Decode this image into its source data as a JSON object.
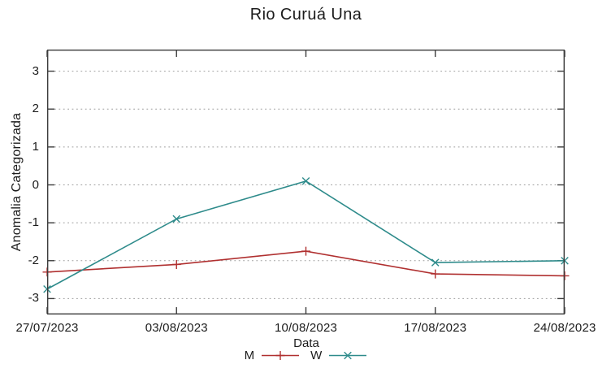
{
  "chart_data": {
    "type": "line",
    "title": "Rio Curuá Una",
    "xlabel": "Data",
    "ylabel": "Anomalia Categorizada",
    "categories": [
      "27/07/2023",
      "03/08/2023",
      "10/08/2023",
      "17/08/2023",
      "24/08/2023"
    ],
    "series": [
      {
        "name": "M",
        "color": "#b03030",
        "marker": "plus",
        "values": [
          -2.3,
          -2.1,
          -1.75,
          -2.35,
          -2.4
        ]
      },
      {
        "name": "W",
        "color": "#2e8b8b",
        "marker": "cross",
        "values": [
          -2.75,
          -0.9,
          0.1,
          -2.05,
          -2.0
        ]
      }
    ],
    "ylim": [
      -3.42,
      3.57
    ],
    "yticks": [
      3,
      2,
      1,
      0,
      -1,
      -2,
      -3
    ],
    "grid": "horizontal-dotted",
    "legend_position": "bottom-center",
    "axis_color": "#3c3c3c",
    "grid_color": "#9e9e9e",
    "text_color": "#1c1c1c"
  }
}
